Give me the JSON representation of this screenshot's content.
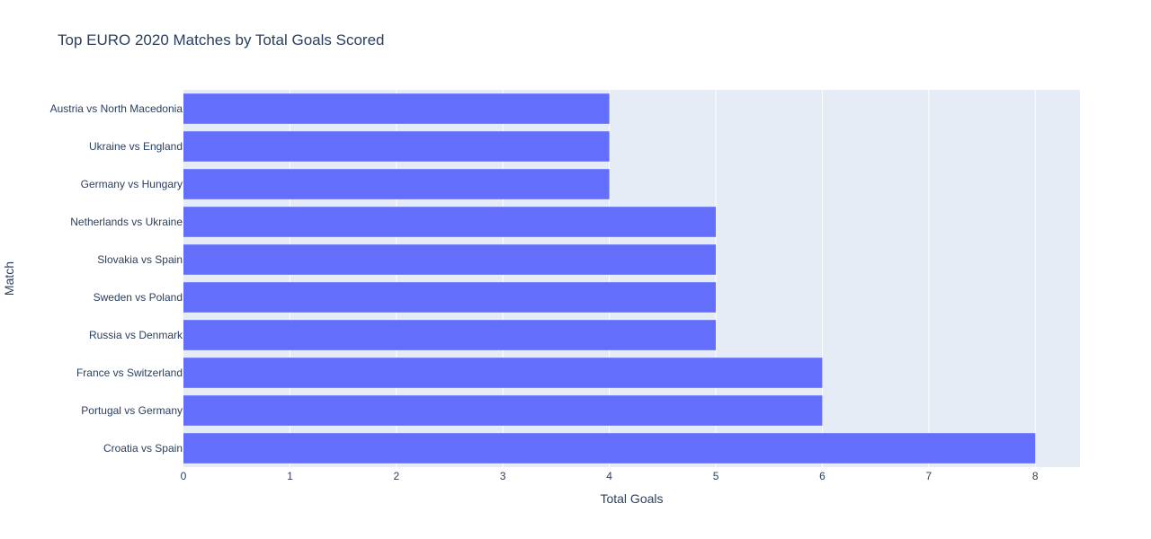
{
  "chart_data": {
    "type": "bar",
    "orientation": "horizontal",
    "title": "Top EURO 2020 Matches by Total Goals Scored",
    "xlabel": "Total Goals",
    "ylabel": "Match",
    "categories": [
      "Austria vs North Macedonia",
      "Ukraine vs England",
      "Germany vs Hungary",
      "Netherlands vs Ukraine",
      "Slovakia vs Spain",
      "Sweden vs Poland",
      "Russia vs Denmark",
      "France vs Switzerland",
      "Portugal vs Germany",
      "Croatia vs Spain"
    ],
    "values": [
      4,
      4,
      4,
      5,
      5,
      5,
      5,
      6,
      6,
      8
    ],
    "xlim": [
      0,
      8.42
    ],
    "xticks": [
      "0",
      "1",
      "2",
      "3",
      "4",
      "5",
      "6",
      "7",
      "8"
    ],
    "grid": true,
    "colors": {
      "bar": "#636efa",
      "plot_background": "#e5ecf6",
      "grid": "#ffffff",
      "text": "#2a3f5f"
    }
  }
}
